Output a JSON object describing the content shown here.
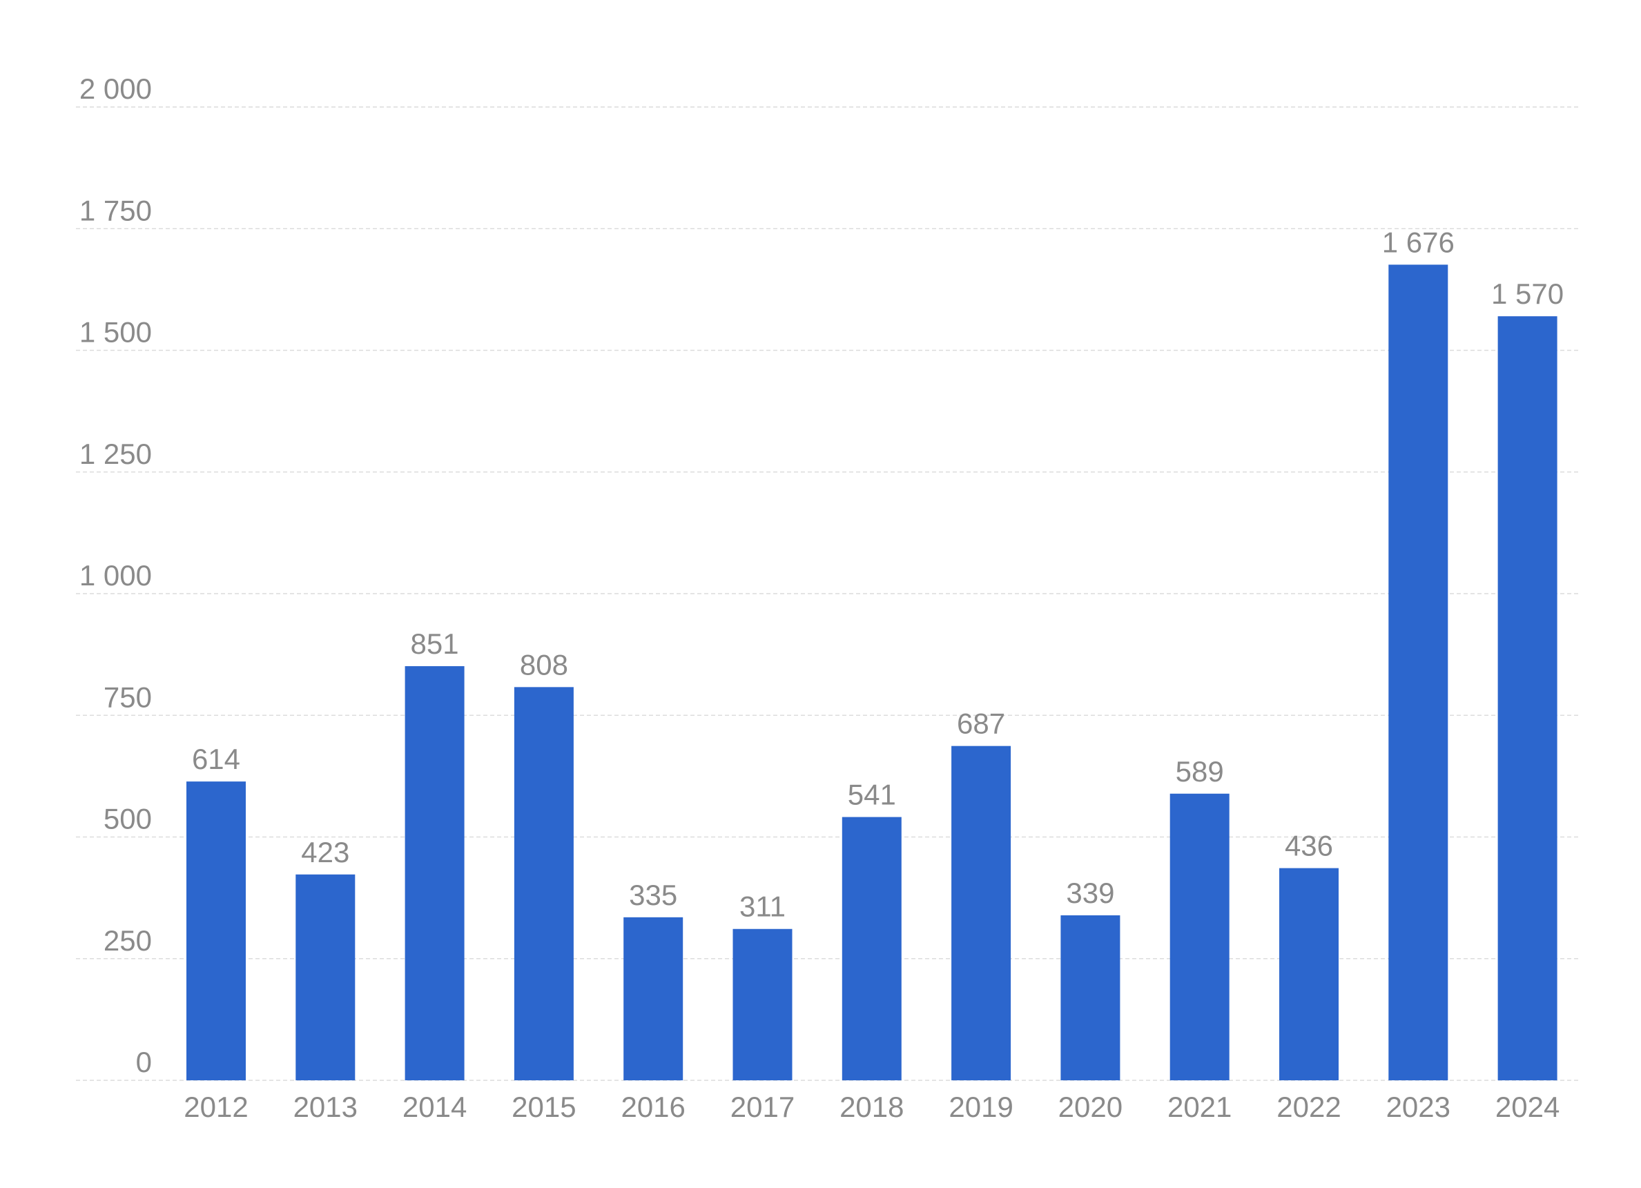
{
  "chart_data": {
    "type": "bar",
    "categories": [
      "2012",
      "2013",
      "2014",
      "2015",
      "2016",
      "2017",
      "2018",
      "2019",
      "2020",
      "2021",
      "2022",
      "2023",
      "2024"
    ],
    "values": [
      614,
      423,
      851,
      808,
      335,
      311,
      541,
      687,
      339,
      589,
      436,
      1676,
      1570
    ],
    "value_labels": [
      "614",
      "423",
      "851",
      "808",
      "335",
      "311",
      "541",
      "687",
      "339",
      "589",
      "436",
      "1 676",
      "1 570"
    ],
    "y_ticks": [
      0,
      250,
      500,
      750,
      1000,
      1250,
      1500,
      1750,
      2000
    ],
    "y_tick_labels": [
      "0",
      "250",
      "500",
      "750",
      "1 000",
      "1 250",
      "1 500",
      "1 750",
      "2 000"
    ],
    "ylim": [
      0,
      2000
    ],
    "grid": true,
    "bar_color": "#2c66cd",
    "grid_color": "#dcdcdc",
    "text_color": "#8a8a8a"
  }
}
